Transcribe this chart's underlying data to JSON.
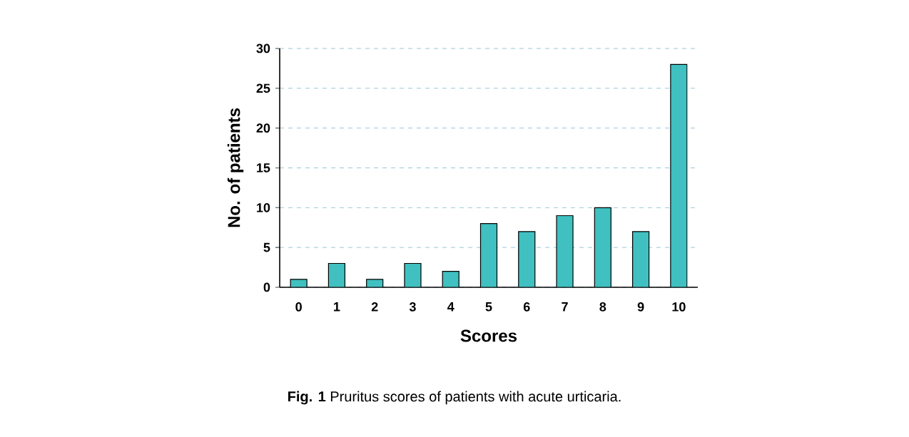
{
  "chart_data": {
    "type": "bar",
    "xlabel": "Scores",
    "ylabel": "No. of patients",
    "categories": [
      "0",
      "1",
      "2",
      "3",
      "4",
      "5",
      "6",
      "7",
      "8",
      "9",
      "10"
    ],
    "values": [
      1,
      3,
      1,
      3,
      2,
      8,
      7,
      9,
      10,
      7,
      28
    ],
    "color": "#40c0c0",
    "ylim": [
      0,
      30
    ],
    "yticks": [
      0,
      5,
      10,
      15,
      20,
      25,
      30
    ],
    "grid": "y",
    "annotations": [
      "**Fig. 1**   Pruritus scores of patients with acute urticaria."
    ]
  }
}
